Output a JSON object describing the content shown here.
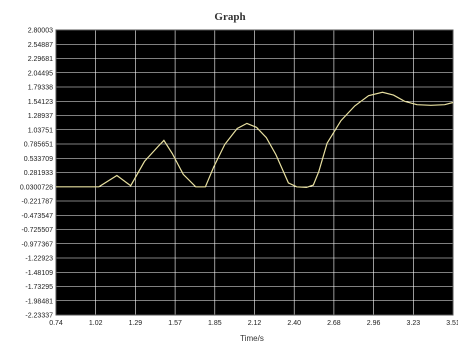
{
  "chart_data": {
    "type": "line",
    "title": "Graph",
    "xlabel": "Time/s",
    "ylabel": "",
    "xlim": [
      0.74,
      3.61
    ],
    "ylim": [
      -2.23337,
      2.80003
    ],
    "grid": true,
    "background": "#000000",
    "grid_color": "#ffffff",
    "line_color": "#e8e0a0",
    "x_ticks": [
      "0.74",
      "1.02",
      "1.29",
      "1.57",
      "1.85",
      "2.12",
      "2.40",
      "2.68",
      "2.96",
      "3.23",
      "3.51"
    ],
    "y_ticks": [
      "2.80003",
      "2.54887",
      "2.29681",
      "2.04495",
      "1.79338",
      "1.54123",
      "1.28937",
      "1.03751",
      "0.785651",
      "0.533709",
      "0.281933",
      "0.0300728",
      "-0.221787",
      "-0.473547",
      "-0.725507",
      "-0.977367",
      "-1.22923",
      "-1.48109",
      "-1.73295",
      "-1.98481",
      "-2.23337"
    ],
    "series": [
      {
        "x": [
          0.74,
          0.95,
          1.05,
          1.18,
          1.28,
          1.38,
          1.48,
          1.52,
          1.58,
          1.66,
          1.75,
          1.82,
          1.88,
          1.96,
          2.05,
          2.12,
          2.19,
          2.26,
          2.33,
          2.42,
          2.48,
          2.55,
          2.6,
          2.64,
          2.7,
          2.8,
          2.9,
          3.0,
          3.1,
          3.18,
          3.26,
          3.35,
          3.45,
          3.55,
          3.61
        ],
        "y": [
          0.03,
          0.03,
          0.03,
          0.23,
          0.05,
          0.48,
          0.75,
          0.85,
          0.62,
          0.25,
          0.03,
          0.03,
          0.38,
          0.78,
          1.06,
          1.15,
          1.08,
          0.9,
          0.6,
          0.1,
          0.03,
          0.02,
          0.06,
          0.3,
          0.8,
          1.2,
          1.46,
          1.64,
          1.7,
          1.65,
          1.54,
          1.48,
          1.47,
          1.48,
          1.52
        ]
      }
    ]
  }
}
